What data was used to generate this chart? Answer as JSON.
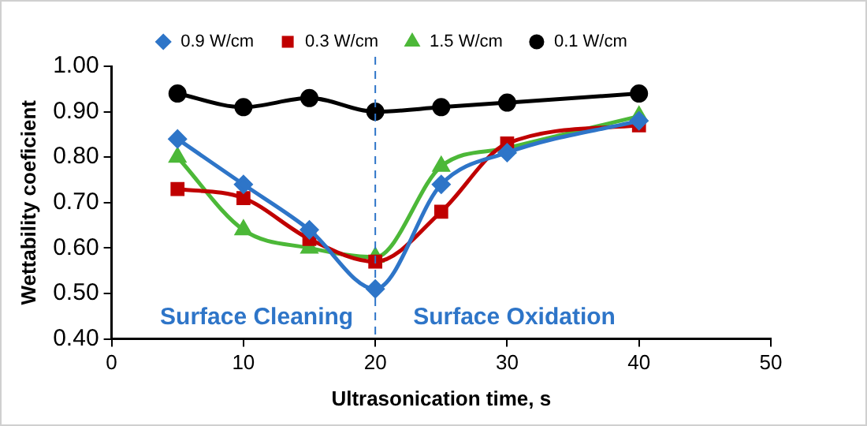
{
  "chart_data": {
    "type": "line",
    "xlabel": "Ultrasonication time, s",
    "ylabel": "Wettability coeficient",
    "x": [
      5,
      10,
      15,
      20,
      25,
      30,
      40
    ],
    "series": [
      {
        "name": "0.9 W/cm",
        "color": "#2e75c8",
        "marker": "diamond",
        "values": [
          0.84,
          0.74,
          0.64,
          0.51,
          0.74,
          0.81,
          0.88
        ]
      },
      {
        "name": "0.3 W/cm",
        "color": "#c00000",
        "marker": "square",
        "values": [
          0.73,
          0.71,
          0.62,
          0.57,
          0.68,
          0.83,
          0.87
        ]
      },
      {
        "name": "1.5 W/cm",
        "color": "#4cb838",
        "marker": "triangle",
        "values": [
          0.8,
          0.64,
          0.6,
          0.58,
          0.78,
          0.82,
          0.89
        ]
      },
      {
        "name": "0.1 W/cm",
        "color": "#000000",
        "marker": "circle",
        "values": [
          0.94,
          0.91,
          0.93,
          0.9,
          0.91,
          0.92,
          0.94
        ]
      }
    ],
    "xlim": [
      0,
      50
    ],
    "xticks": [
      0,
      10,
      20,
      30,
      40,
      50
    ],
    "ylim": [
      0.4,
      1.0
    ],
    "yticks": [
      {
        "value": 0.4,
        "label": "0.40"
      },
      {
        "value": 0.5,
        "label": "0.50"
      },
      {
        "value": 0.6,
        "label": "0.60"
      },
      {
        "value": 0.7,
        "label": "0.70"
      },
      {
        "value": 0.8,
        "label": "0.80"
      },
      {
        "value": 0.9,
        "label": "0.90"
      },
      {
        "value": 1.0,
        "label": "1.00"
      }
    ],
    "ref_lines": [
      {
        "axis": "x",
        "value": 20,
        "color": "#2e75c8",
        "line_style": "dashed"
      }
    ],
    "annotations": [
      "Surface Cleaning",
      "Surface Oxidation"
    ],
    "grid": false,
    "legend": "top",
    "line_style": "solid"
  }
}
